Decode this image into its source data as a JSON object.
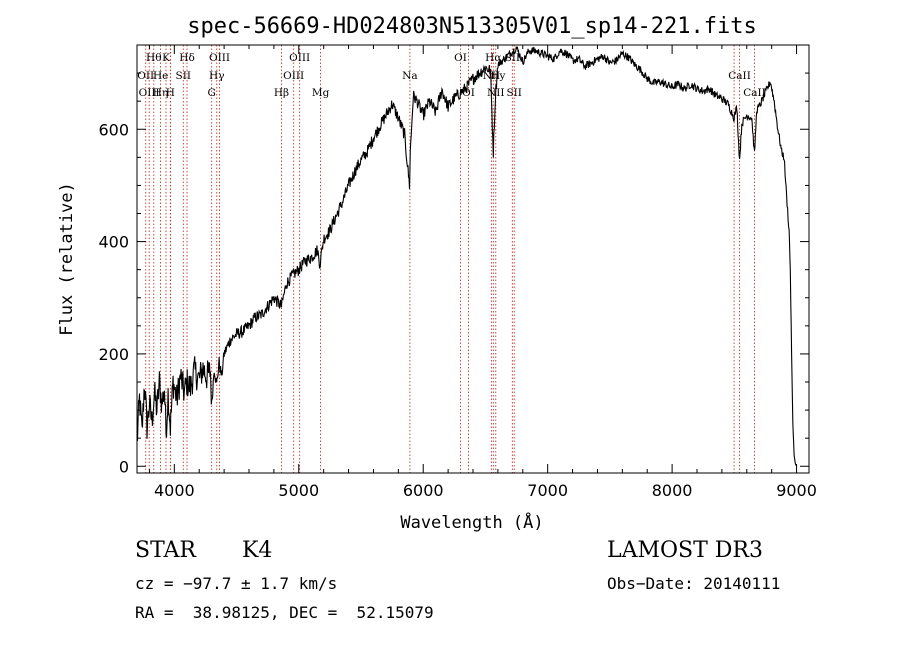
{
  "chart_data": {
    "type": "line",
    "title": "spec-56669-HD024803N513305V01_sp14-221.fits",
    "xlabel": "Wavelength (Å)",
    "ylabel": "Flux (relative)",
    "xlim": [
      3700,
      9100
    ],
    "ylim": [
      -12,
      750
    ],
    "xticks": [
      4000,
      5000,
      6000,
      7000,
      8000,
      9000
    ],
    "yticks": [
      0,
      200,
      400,
      600
    ],
    "grid": false,
    "series": [
      {
        "name": "flux",
        "x": [
          3700,
          3720,
          3740,
          3760,
          3780,
          3800,
          3820,
          3840,
          3860,
          3880,
          3900,
          3920,
          3933,
          3950,
          3968,
          3990,
          4000,
          4020,
          4050,
          4080,
          4100,
          4130,
          4160,
          4200,
          4230,
          4260,
          4290,
          4300,
          4320,
          4340,
          4360,
          4380,
          4400,
          4450,
          4500,
          4550,
          4600,
          4650,
          4700,
          4750,
          4800,
          4861,
          4900,
          4950,
          5000,
          5050,
          5100,
          5150,
          5170,
          5183,
          5200,
          5250,
          5300,
          5350,
          5400,
          5450,
          5500,
          5550,
          5600,
          5650,
          5700,
          5750,
          5800,
          5850,
          5890,
          5896,
          5920,
          5950,
          6000,
          6050,
          6100,
          6150,
          6200,
          6250,
          6300,
          6350,
          6400,
          6450,
          6500,
          6540,
          6563,
          6580,
          6600,
          6650,
          6700,
          6750,
          6800,
          6850,
          6900,
          6950,
          7000,
          7050,
          7100,
          7150,
          7200,
          7250,
          7300,
          7350,
          7400,
          7450,
          7500,
          7550,
          7600,
          7650,
          7700,
          7750,
          7800,
          7850,
          7900,
          7950,
          8000,
          8050,
          8100,
          8150,
          8200,
          8250,
          8300,
          8350,
          8400,
          8450,
          8498,
          8520,
          8542,
          8560,
          8600,
          8640,
          8662,
          8680,
          8700,
          8750,
          8790,
          8820,
          8850,
          8880,
          8900,
          8920,
          8940,
          8950,
          8960,
          8970,
          8980,
          8990,
          9000
        ],
        "values": [
          40,
          120,
          60,
          150,
          70,
          110,
          80,
          130,
          100,
          150,
          110,
          140,
          60,
          130,
          70,
          150,
          140,
          120,
          160,
          130,
          150,
          140,
          170,
          155,
          175,
          160,
          170,
          110,
          175,
          145,
          185,
          160,
          200,
          225,
          235,
          240,
          250,
          265,
          270,
          285,
          300,
          285,
          325,
          340,
          350,
          365,
          372,
          385,
          360,
          380,
          405,
          420,
          445,
          470,
          500,
          525,
          545,
          560,
          585,
          605,
          625,
          645,
          620,
          590,
          500,
          560,
          660,
          650,
          625,
          650,
          630,
          670,
          640,
          655,
          665,
          675,
          690,
          700,
          710,
          705,
          560,
          660,
          715,
          725,
          735,
          745,
          720,
          740,
          740,
          735,
          730,
          725,
          740,
          735,
          722,
          725,
          712,
          718,
          725,
          730,
          718,
          722,
          735,
          728,
          715,
          705,
          690,
          682,
          685,
          680,
          675,
          680,
          672,
          680,
          672,
          668,
          672,
          660,
          655,
          645,
          620,
          640,
          545,
          610,
          625,
          620,
          555,
          635,
          640,
          665,
          685,
          650,
          600,
          560,
          550,
          480,
          420,
          350,
          200,
          80,
          20,
          5,
          0
        ]
      }
    ],
    "lines": [
      {
        "wl": 3770,
        "label": "OII"
      },
      {
        "wl": 3798,
        "label": "OIII"
      },
      {
        "wl": 3835,
        "label": "Hθ"
      },
      {
        "wl": 3889,
        "label": "Hη"
      },
      {
        "wl": 3933,
        "label": "K"
      },
      {
        "wl": 3968,
        "label": "H"
      },
      {
        "wl": 3970,
        "label": "Hε"
      },
      {
        "wl": 4072,
        "label": "SII"
      },
      {
        "wl": 4102,
        "label": "Hδ"
      },
      {
        "wl": 4300,
        "label": "G"
      },
      {
        "wl": 4341,
        "label": "Hγ"
      },
      {
        "wl": 4363,
        "label": "OIII"
      },
      {
        "wl": 4861,
        "label": "Hβ"
      },
      {
        "wl": 4959,
        "label": "OIII"
      },
      {
        "wl": 5007,
        "label": "OIII"
      },
      {
        "wl": 5175,
        "label": "Mg"
      },
      {
        "wl": 5893,
        "label": "Na"
      },
      {
        "wl": 6300,
        "label": "OI"
      },
      {
        "wl": 6364,
        "label": "OI"
      },
      {
        "wl": 6548,
        "label": "NII"
      },
      {
        "wl": 6563,
        "label": "Hα"
      },
      {
        "wl": 6583,
        "label": "NII"
      },
      {
        "wl": 6716,
        "label": "SII"
      },
      {
        "wl": 6731,
        "label": "SII"
      },
      {
        "wl": 8498,
        "label": "CaII"
      },
      {
        "wl": 8542,
        "label": "CaII"
      },
      {
        "wl": 8662,
        "label": "CaII"
      }
    ],
    "line_label_rows": [
      [
        "Hθ",
        "K",
        "Hδ",
        "OIII",
        "OIII",
        "OI",
        "Hα",
        "SII"
      ],
      [
        "OII",
        "He",
        "SII",
        "Hγ",
        "OIII",
        "Na",
        "NII",
        "Hy",
        "CaII"
      ],
      [
        "OIII",
        "Hη",
        "H",
        "G",
        "Hβ",
        "Mg",
        "OI",
        "NII",
        "SII",
        "CaII"
      ]
    ]
  },
  "info": {
    "object_class": "STAR",
    "subclass": "K4",
    "survey": "LAMOST DR3",
    "cz": "cz = −97.7 ± 1.7 km/s",
    "obs_date": "Obs−Date: 20140111",
    "coords": "RA =  38.98125, DEC =  52.15079"
  }
}
